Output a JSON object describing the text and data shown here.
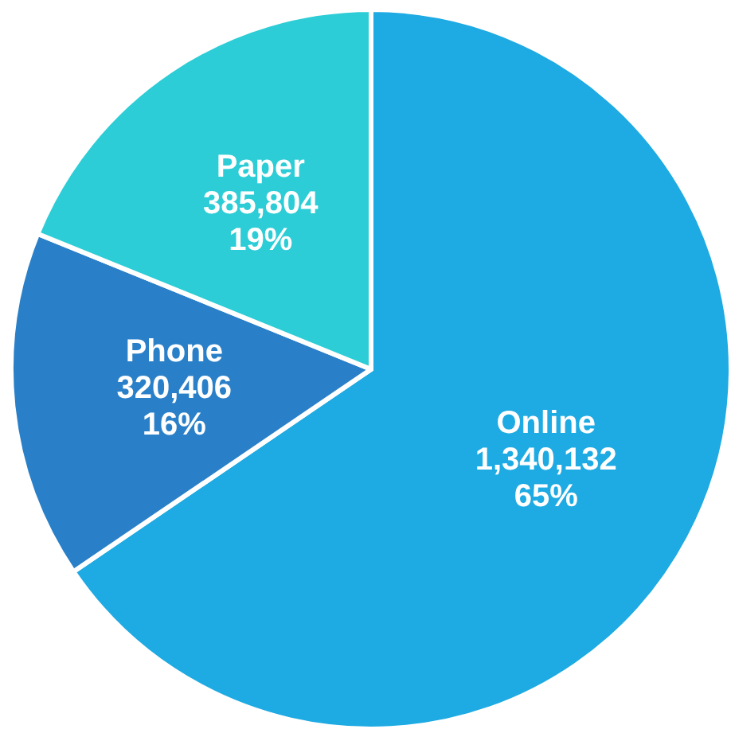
{
  "chart_data": {
    "type": "pie",
    "categories": [
      "Online",
      "Phone",
      "Paper"
    ],
    "values": [
      1340132,
      320406,
      385804
    ],
    "colors": [
      "#1eaae2",
      "#2a80c8",
      "#2ccdd6"
    ],
    "value_labels": [
      "1,340,132\n65%",
      "320,406\n16%",
      "385,804\n19%"
    ]
  }
}
